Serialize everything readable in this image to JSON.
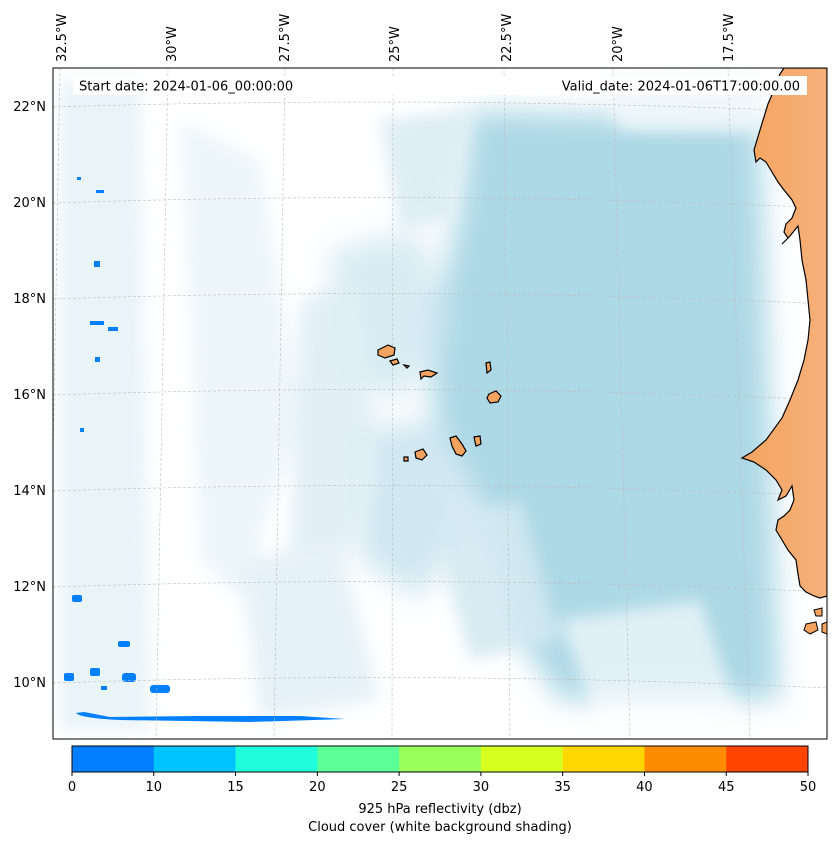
{
  "header": {
    "start_date": "Start date: 2024-01-06_00:00:00",
    "valid_date": "Valid_date: 2024-01-06T17:00:00.00"
  },
  "lon_labels": [
    "32.5°W",
    "30°W",
    "27.5°W",
    "25°W",
    "22.5°W",
    "20°W",
    "17.5°W"
  ],
  "lat_labels": [
    "22°N",
    "20°N",
    "18°N",
    "16°N",
    "14°N",
    "12°N",
    "10°N"
  ],
  "colorbar": {
    "ticks": [
      "0",
      "10",
      "15",
      "20",
      "25",
      "30",
      "35",
      "40",
      "45",
      "50"
    ],
    "colors": [
      "#007fff",
      "#00c4ff",
      "#1fffdd",
      "#5bff98",
      "#98ff5b",
      "#d6ff1f",
      "#ffd700",
      "#ff8c00",
      "#ff4500"
    ],
    "label_line1": "925 hPa reflectivity (dbz)",
    "label_line2": "Cloud cover (white background shading)"
  },
  "colors": {
    "land": "#f4a460",
    "ocean_cloudfree": "#add8e6",
    "reflectivity_low": "#007fff"
  }
}
